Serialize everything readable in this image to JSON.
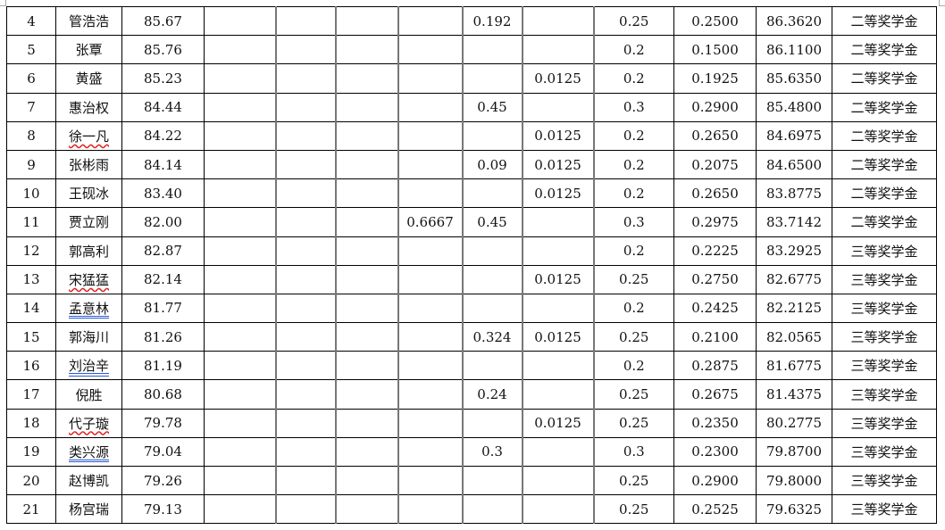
{
  "rows": [
    {
      "no": "4",
      "name": "管浩浩",
      "score": "85.67",
      "c4": "",
      "c5": "",
      "c6": "",
      "c7": "",
      "c8": "0.192",
      "c9": "",
      "c10": "0.25",
      "c11": "0.2500",
      "total": "86.3620",
      "award": "二等奖学金"
    },
    {
      "no": "5",
      "name": "张覃",
      "score": "85.76",
      "c4": "",
      "c5": "",
      "c6": "",
      "c7": "",
      "c8": "",
      "c9": "",
      "c10": "0.2",
      "c11": "0.1500",
      "total": "86.1100",
      "award": "二等奖学金"
    },
    {
      "no": "6",
      "name": "黄盛",
      "score": "85.23",
      "c4": "",
      "c5": "",
      "c6": "",
      "c7": "",
      "c8": "",
      "c9": "0.0125",
      "c10": "0.2",
      "c11": "0.1925",
      "total": "85.6350",
      "award": "二等奖学金"
    },
    {
      "no": "7",
      "name": "惠治权",
      "score": "84.44",
      "c4": "",
      "c5": "",
      "c6": "",
      "c7": "",
      "c8": "0.45",
      "c9": "",
      "c10": "0.3",
      "c11": "0.2900",
      "total": "85.4800",
      "award": "二等奖学金"
    },
    {
      "no": "8",
      "name": "徐一凡",
      "score": "84.22",
      "c4": "",
      "c5": "",
      "c6": "",
      "c7": "",
      "c8": "",
      "c9": "0.0125",
      "c10": "0.2",
      "c11": "0.2650",
      "total": "84.6975",
      "award": "二等奖学金"
    },
    {
      "no": "9",
      "name": "张彬雨",
      "score": "84.14",
      "c4": "",
      "c5": "",
      "c6": "",
      "c7": "",
      "c8": "0.09",
      "c9": "0.0125",
      "c10": "0.2",
      "c11": "0.2075",
      "total": "84.6500",
      "award": "二等奖学金"
    },
    {
      "no": "10",
      "name": "王砚冰",
      "score": "83.40",
      "c4": "",
      "c5": "",
      "c6": "",
      "c7": "",
      "c8": "",
      "c9": "0.0125",
      "c10": "0.2",
      "c11": "0.2650",
      "total": "83.8775",
      "award": "二等奖学金"
    },
    {
      "no": "11",
      "name": "贾立刚",
      "score": "82.00",
      "c4": "",
      "c5": "",
      "c6": "",
      "c7": "0.6667",
      "c8": "0.45",
      "c9": "",
      "c10": "0.3",
      "c11": "0.2975",
      "total": "83.7142",
      "award": "二等奖学金"
    },
    {
      "no": "12",
      "name": "郭高利",
      "score": "82.87",
      "c4": "",
      "c5": "",
      "c6": "",
      "c7": "",
      "c8": "",
      "c9": "",
      "c10": "0.2",
      "c11": "0.2225",
      "total": "83.2925",
      "award": "三等奖学金"
    },
    {
      "no": "13",
      "name": "宋猛猛",
      "score": "82.14",
      "c4": "",
      "c5": "",
      "c6": "",
      "c7": "",
      "c8": "",
      "c9": "0.0125",
      "c10": "0.25",
      "c11": "0.2750",
      "total": "82.6775",
      "award": "三等奖学金"
    },
    {
      "no": "14",
      "name": "孟意林",
      "score": "81.77",
      "c4": "",
      "c5": "",
      "c6": "",
      "c7": "",
      "c8": "",
      "c9": "",
      "c10": "0.2",
      "c11": "0.2425",
      "total": "82.2125",
      "award": "三等奖学金"
    },
    {
      "no": "15",
      "name": "郭海川",
      "score": "81.26",
      "c4": "",
      "c5": "",
      "c6": "",
      "c7": "",
      "c8": "0.324",
      "c9": "0.0125",
      "c10": "0.25",
      "c11": "0.2100",
      "total": "82.0565",
      "award": "三等奖学金"
    },
    {
      "no": "16",
      "name": "刘治辛",
      "score": "81.19",
      "c4": "",
      "c5": "",
      "c6": "",
      "c7": "",
      "c8": "",
      "c9": "",
      "c10": "0.2",
      "c11": "0.2875",
      "total": "81.6775",
      "award": "三等奖学金"
    },
    {
      "no": "17",
      "name": "倪胜",
      "score": "80.68",
      "c4": "",
      "c5": "",
      "c6": "",
      "c7": "",
      "c8": "0.24",
      "c9": "",
      "c10": "0.25",
      "c11": "0.2675",
      "total": "81.4375",
      "award": "三等奖学金"
    },
    {
      "no": "18",
      "name": "代子璇",
      "score": "79.78",
      "c4": "",
      "c5": "",
      "c6": "",
      "c7": "",
      "c8": "",
      "c9": "0.0125",
      "c10": "0.25",
      "c11": "0.2350",
      "total": "80.2775",
      "award": "三等奖学金"
    },
    {
      "no": "19",
      "name": "类兴源",
      "score": "79.04",
      "c4": "",
      "c5": "",
      "c6": "",
      "c7": "",
      "c8": "0.3",
      "c9": "",
      "c10": "0.3",
      "c11": "0.2300",
      "total": "79.8700",
      "award": "三等奖学金"
    },
    {
      "no": "20",
      "name": "赵博凯",
      "score": "79.26",
      "c4": "",
      "c5": "",
      "c6": "",
      "c7": "",
      "c8": "",
      "c9": "",
      "c10": "0.25",
      "c11": "0.2900",
      "total": "79.8000",
      "award": "三等奖学金"
    },
    {
      "no": "21",
      "name": "杨宫瑞",
      "score": "79.13",
      "c4": "",
      "c5": "",
      "c6": "",
      "c7": "",
      "c8": "",
      "c9": "",
      "c10": "0.25",
      "c11": "0.2525",
      "total": "79.6325",
      "award": "三等奖学金"
    }
  ],
  "name_marks": {
    "8": "wavy",
    "13": "wavy",
    "18": "wavy",
    "14": "double",
    "16": "double",
    "19": "double"
  }
}
